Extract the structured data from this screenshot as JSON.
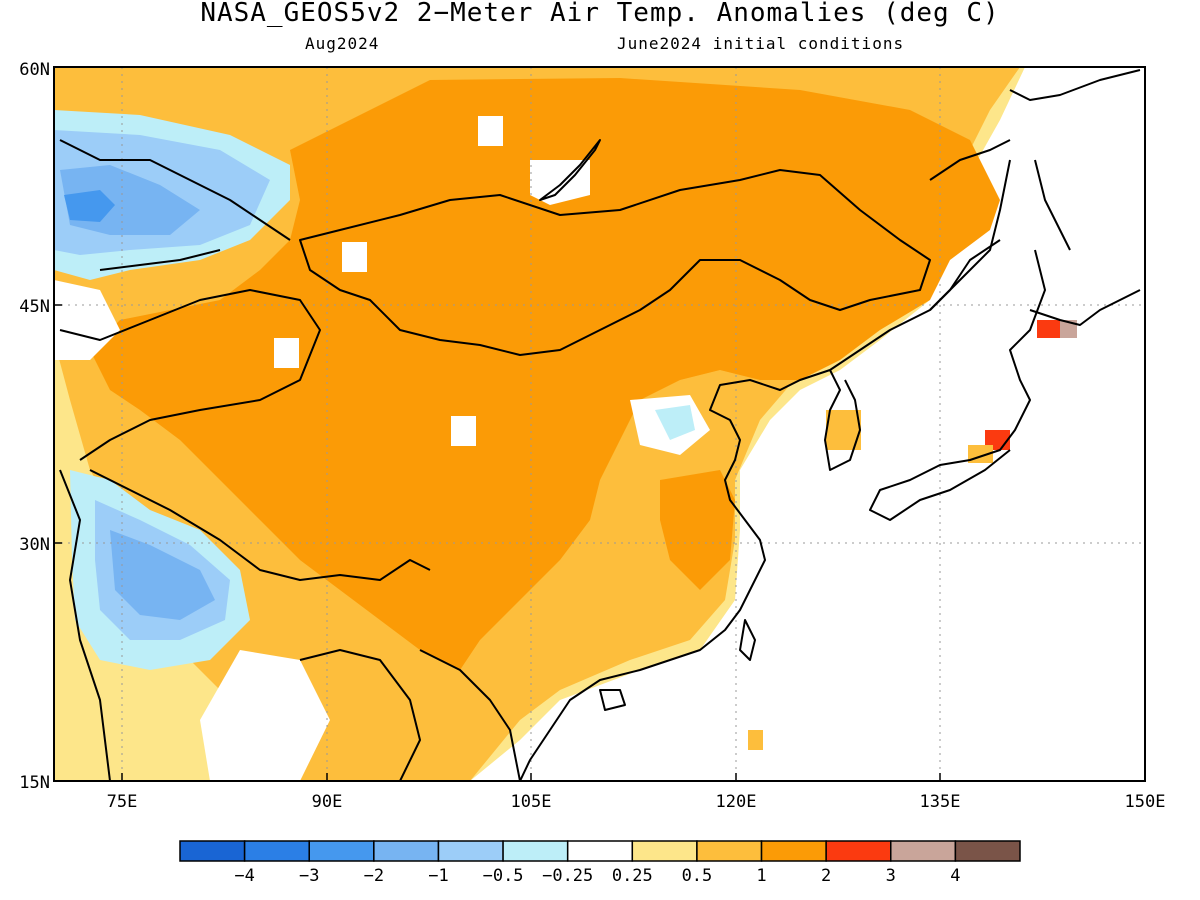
{
  "title": "NASA_GEOS5v2 2−Meter Air Temp. Anomalies (deg C)",
  "subtitle_left": "Aug2024",
  "subtitle_right": "June2024 initial conditions",
  "map": {
    "region": "East and Central Asia",
    "lon_range": [
      70,
      150
    ],
    "lat_range": [
      15,
      60
    ],
    "lat_ticks": [
      "60N",
      "45N",
      "30N",
      "15N"
    ],
    "lon_ticks": [
      "75E",
      "90E",
      "105E",
      "120E",
      "135E",
      "150E"
    ],
    "gridlines": "dotted",
    "land_outline_color": "#000000"
  },
  "colorbar": {
    "labels": [
      "−4",
      "−3",
      "−2",
      "−1",
      "−0.5",
      "−0.25",
      "0.25",
      "0.5",
      "1",
      "2",
      "3",
      "4"
    ],
    "colors": [
      "#1965d4",
      "#2b7fe6",
      "#4598ee",
      "#77b4f2",
      "#9ccdf8",
      "#bdeef8",
      "#ffffff",
      "#fde68a",
      "#fdbe3c",
      "#fb9b06",
      "#fb3a10",
      "#c9a59a",
      "#7a5448"
    ]
  }
}
